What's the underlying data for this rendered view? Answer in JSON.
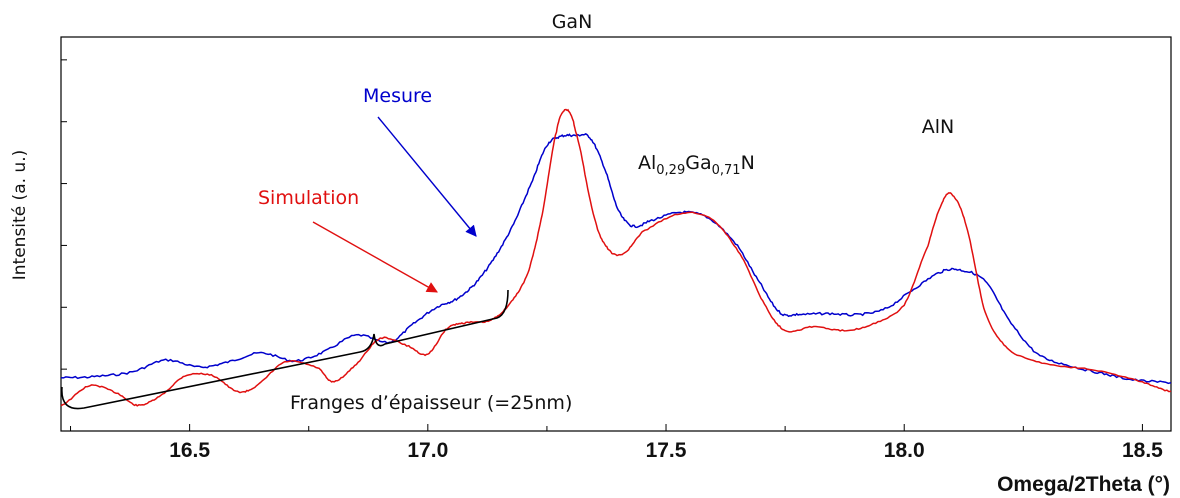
{
  "chart_data": {
    "type": "line",
    "title": "",
    "xlabel": "Omega/2Theta (°)",
    "ylabel": "Intensité (a. u.)",
    "xlim": [
      16.23,
      18.56
    ],
    "ylim": [
      0,
      10
    ],
    "x_ticks": [
      16.5,
      17.0,
      17.5,
      18.0,
      18.5
    ],
    "x_tick_labels": [
      "16.5",
      "17.0",
      "17.5",
      "18.0",
      "18.5"
    ],
    "grid": false,
    "colors": {
      "mesure": "#0000cc",
      "simulation": "#e01010"
    },
    "series": [
      {
        "name": "Mesure",
        "color": "#0000cc",
        "points": [
          [
            16.23,
            1.35
          ],
          [
            16.3,
            1.38
          ],
          [
            16.38,
            1.5
          ],
          [
            16.45,
            1.8
          ],
          [
            16.52,
            1.62
          ],
          [
            16.58,
            1.75
          ],
          [
            16.65,
            1.98
          ],
          [
            16.72,
            1.78
          ],
          [
            16.78,
            2.0
          ],
          [
            16.85,
            2.43
          ],
          [
            16.92,
            2.25
          ],
          [
            16.97,
            2.72
          ],
          [
            17.02,
            3.15
          ],
          [
            17.06,
            3.35
          ],
          [
            17.1,
            3.75
          ],
          [
            17.14,
            4.4
          ],
          [
            17.18,
            5.25
          ],
          [
            17.22,
            6.35
          ],
          [
            17.25,
            7.25
          ],
          [
            17.28,
            7.48
          ],
          [
            17.31,
            7.5
          ],
          [
            17.34,
            7.45
          ],
          [
            17.37,
            6.7
          ],
          [
            17.4,
            5.6
          ],
          [
            17.43,
            5.2
          ],
          [
            17.47,
            5.35
          ],
          [
            17.53,
            5.55
          ],
          [
            17.59,
            5.4
          ],
          [
            17.65,
            4.7
          ],
          [
            17.7,
            3.7
          ],
          [
            17.74,
            3.0
          ],
          [
            17.78,
            2.96
          ],
          [
            17.84,
            2.98
          ],
          [
            17.9,
            2.95
          ],
          [
            17.96,
            3.1
          ],
          [
            18.02,
            3.6
          ],
          [
            18.08,
            4.05
          ],
          [
            18.12,
            4.08
          ],
          [
            18.17,
            3.8
          ],
          [
            18.22,
            2.8
          ],
          [
            18.28,
            1.95
          ],
          [
            18.35,
            1.65
          ],
          [
            18.42,
            1.45
          ],
          [
            18.48,
            1.3
          ],
          [
            18.56,
            1.23
          ]
        ]
      },
      {
        "name": "Simulation",
        "color": "#e01010",
        "points": [
          [
            16.23,
            0.65
          ],
          [
            16.29,
            1.15
          ],
          [
            16.35,
            0.95
          ],
          [
            16.39,
            0.65
          ],
          [
            16.44,
            0.9
          ],
          [
            16.49,
            1.4
          ],
          [
            16.55,
            1.4
          ],
          [
            16.6,
            1.0
          ],
          [
            16.64,
            1.15
          ],
          [
            16.7,
            1.75
          ],
          [
            16.77,
            1.6
          ],
          [
            16.8,
            1.25
          ],
          [
            16.85,
            1.7
          ],
          [
            16.9,
            2.35
          ],
          [
            16.96,
            2.15
          ],
          [
            17.0,
            1.95
          ],
          [
            17.04,
            2.6
          ],
          [
            17.08,
            2.75
          ],
          [
            17.13,
            2.8
          ],
          [
            17.17,
            3.2
          ],
          [
            17.21,
            4.0
          ],
          [
            17.24,
            5.5
          ],
          [
            17.27,
            7.6
          ],
          [
            17.29,
            8.15
          ],
          [
            17.31,
            7.6
          ],
          [
            17.35,
            5.4
          ],
          [
            17.38,
            4.6
          ],
          [
            17.41,
            4.5
          ],
          [
            17.45,
            5.05
          ],
          [
            17.53,
            5.52
          ],
          [
            17.6,
            5.35
          ],
          [
            17.66,
            4.4
          ],
          [
            17.71,
            3.15
          ],
          [
            17.75,
            2.55
          ],
          [
            17.81,
            2.65
          ],
          [
            17.87,
            2.55
          ],
          [
            17.93,
            2.7
          ],
          [
            18.0,
            3.2
          ],
          [
            18.05,
            4.7
          ],
          [
            18.08,
            5.8
          ],
          [
            18.1,
            6.0
          ],
          [
            18.13,
            5.2
          ],
          [
            18.17,
            3.0
          ],
          [
            18.22,
            2.05
          ],
          [
            18.3,
            1.7
          ],
          [
            18.4,
            1.55
          ],
          [
            18.5,
            1.25
          ],
          [
            18.56,
            1.0
          ]
        ]
      }
    ],
    "annotations": {
      "mesure_label": "Mesure",
      "simulation_label": "Simulation",
      "gan_label": "GaN",
      "aln_label": "AlN",
      "algan": {
        "al": "Al",
        "al_sub": "0,29",
        "ga": "Ga",
        "ga_sub": "0,71",
        "n": "N"
      },
      "fringes_label": "Franges d’épaisseur (=25nm)"
    }
  }
}
